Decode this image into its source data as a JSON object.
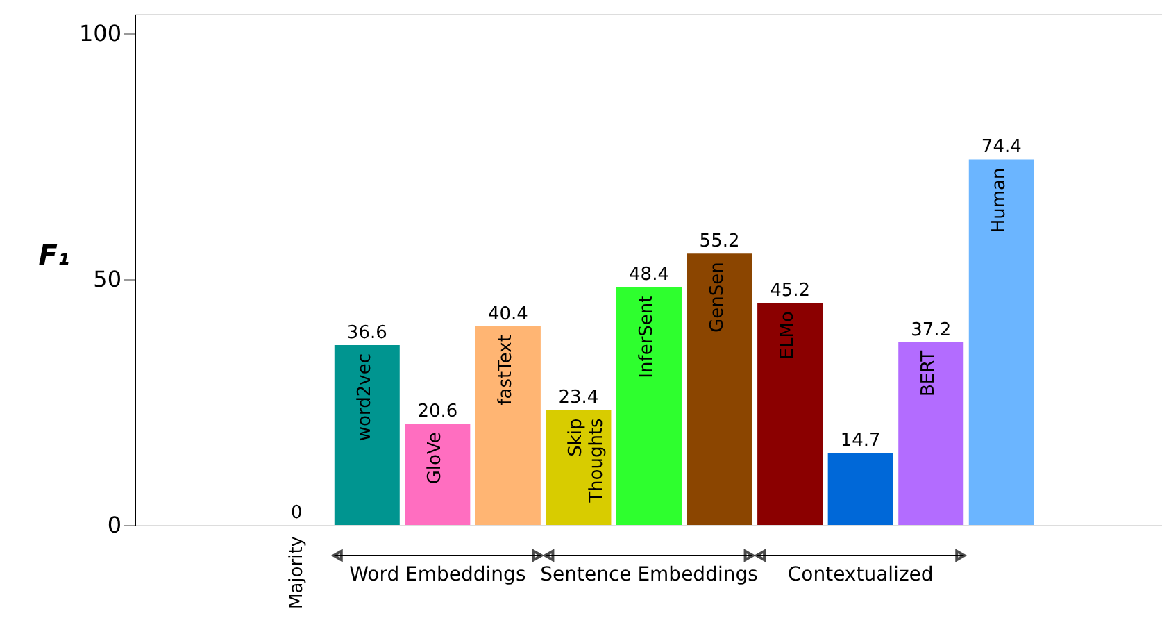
{
  "chart_data": {
    "type": "bar",
    "ylabel": "F₁",
    "categories": [
      "Majority",
      "word2vec",
      "GloVe",
      "fastText",
      "Skip Thoughts",
      "InferSent",
      "GenSen",
      "ELMo",
      null,
      "BERT",
      "Human"
    ],
    "values": [
      0,
      36.6,
      20.6,
      40.4,
      23.4,
      48.4,
      55.2,
      45.2,
      14.7,
      37.2,
      74.4
    ],
    "colors": [
      "#008b8b",
      "#009590",
      "#ff6ec0",
      "#ffb573",
      "#d8cc00",
      "#2eff2e",
      "#8b4500",
      "#8b0000",
      "#0068d8",
      "#b36cff",
      "#6bb5ff"
    ],
    "ylim": [
      0,
      104
    ],
    "yticks": [
      0,
      50,
      100
    ],
    "data_labels": true,
    "grid": false,
    "annotations": [
      "Word Embeddings",
      "Sentence Embeddings",
      "Contextualized"
    ]
  }
}
